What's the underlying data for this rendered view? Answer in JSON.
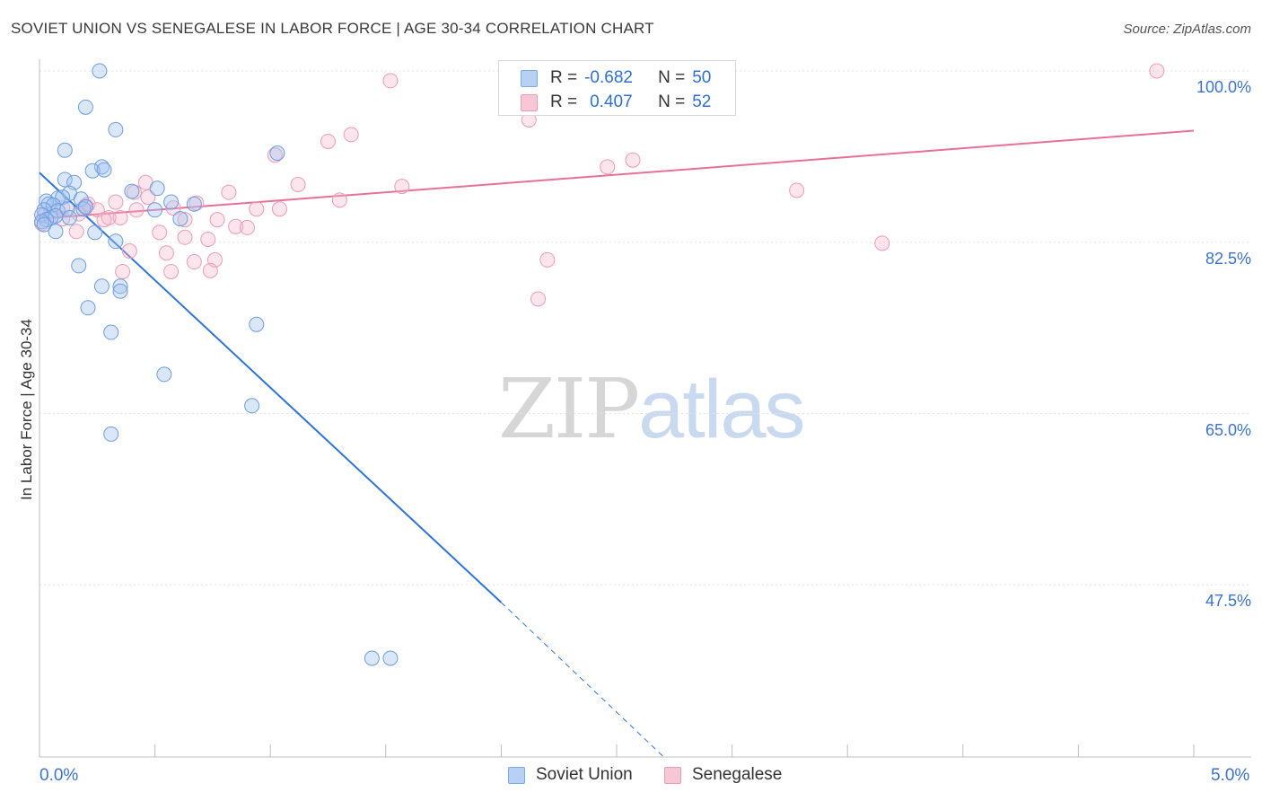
{
  "title": "SOVIET UNION VS SENEGALESE IN LABOR FORCE | AGE 30-34 CORRELATION CHART",
  "source": "Source: ZipAtlas.com",
  "watermark": {
    "zip": "ZIP",
    "atlas": "atlas"
  },
  "legend": {
    "r_label": "R =",
    "n_label": "N =",
    "rows": [
      {
        "r": "-0.682",
        "n": "50",
        "fill": "#b7d1f4",
        "stroke": "#7ea8e3"
      },
      {
        "r": "0.407",
        "n": "52",
        "fill": "#f8c7d5",
        "stroke": "#eb9bb3"
      }
    ]
  },
  "colors": {
    "soviet_fill": "rgba(160,196,240,0.40)",
    "soviet_stroke": "#6d9de0",
    "soviet_line": "#2f74d6",
    "senegalese_fill": "rgba(246,180,200,0.35)",
    "senegalese_stroke": "#ec9cb5",
    "senegalese_line": "#e6709a",
    "grid": "#e3e3e3",
    "axis": "#bfbfbf",
    "tick_label": "#3b73cc"
  },
  "chart_data": {
    "type": "scatter",
    "title": "SOVIET UNION VS SENEGALESE IN LABOR FORCE | AGE 30-34 CORRELATION CHART",
    "xlabel": "",
    "ylabel": "In Labor Force | Age 30-34",
    "xlim": [
      0.0,
      5.2
    ],
    "ylim": [
      29.5,
      101.5
    ],
    "x_tick_labels": [
      "0.0%",
      "5.0%"
    ],
    "y_ticks": [
      47.5,
      65.0,
      82.5,
      100.0
    ],
    "y_tick_labels": [
      "47.5%",
      "65.0%",
      "82.5%",
      "100.0%"
    ],
    "grid": true,
    "legend_position": "top-center",
    "series": [
      {
        "name": "Soviet Union",
        "r": -0.682,
        "n": 50,
        "points": [
          [
            0.26,
            100.0
          ],
          [
            0.2,
            96.3
          ],
          [
            0.33,
            94.0
          ],
          [
            0.11,
            91.9
          ],
          [
            0.27,
            90.2
          ],
          [
            0.23,
            89.8
          ],
          [
            0.28,
            89.9
          ],
          [
            0.11,
            88.9
          ],
          [
            0.15,
            88.6
          ],
          [
            0.13,
            87.5
          ],
          [
            0.08,
            87.0
          ],
          [
            0.1,
            87.1
          ],
          [
            0.18,
            86.9
          ],
          [
            0.03,
            86.7
          ],
          [
            0.04,
            86.4
          ],
          [
            0.06,
            86.3
          ],
          [
            0.02,
            85.8
          ],
          [
            0.08,
            85.7
          ],
          [
            0.12,
            85.9
          ],
          [
            0.19,
            85.9
          ],
          [
            0.2,
            86.1
          ],
          [
            0.01,
            85.3
          ],
          [
            0.05,
            85.0
          ],
          [
            0.07,
            85.2
          ],
          [
            0.13,
            85.0
          ],
          [
            0.03,
            84.8
          ],
          [
            0.01,
            84.6
          ],
          [
            0.02,
            84.3
          ],
          [
            0.07,
            83.6
          ],
          [
            0.24,
            83.5
          ],
          [
            0.33,
            82.6
          ],
          [
            0.4,
            87.7
          ],
          [
            0.51,
            88.0
          ],
          [
            0.57,
            86.6
          ],
          [
            0.5,
            85.8
          ],
          [
            0.61,
            84.9
          ],
          [
            0.67,
            86.4
          ],
          [
            0.17,
            80.1
          ],
          [
            0.27,
            78.0
          ],
          [
            0.35,
            78.0
          ],
          [
            0.35,
            77.5
          ],
          [
            0.21,
            75.8
          ],
          [
            0.31,
            73.3
          ],
          [
            0.54,
            69.0
          ],
          [
            0.94,
            74.1
          ],
          [
            1.03,
            91.6
          ],
          [
            0.92,
            65.8
          ],
          [
            0.31,
            62.9
          ],
          [
            1.44,
            40.0
          ],
          [
            1.52,
            40.0
          ]
        ]
      },
      {
        "name": "Senegalese",
        "r": 0.407,
        "n": 52,
        "points": [
          [
            4.84,
            100.0
          ],
          [
            1.52,
            99.0
          ],
          [
            2.12,
            95.0
          ],
          [
            1.35,
            93.5
          ],
          [
            1.25,
            92.8
          ],
          [
            1.02,
            91.4
          ],
          [
            2.46,
            90.2
          ],
          [
            2.57,
            90.9
          ],
          [
            1.57,
            88.2
          ],
          [
            1.12,
            88.4
          ],
          [
            0.46,
            88.6
          ],
          [
            0.41,
            87.6
          ],
          [
            0.82,
            87.6
          ],
          [
            3.28,
            87.8
          ],
          [
            0.47,
            87.1
          ],
          [
            0.33,
            86.6
          ],
          [
            0.68,
            86.5
          ],
          [
            0.21,
            86.4
          ],
          [
            1.3,
            86.8
          ],
          [
            0.58,
            86.0
          ],
          [
            0.42,
            85.8
          ],
          [
            0.1,
            86.0
          ],
          [
            0.25,
            85.8
          ],
          [
            0.94,
            85.9
          ],
          [
            1.04,
            85.9
          ],
          [
            0.17,
            85.4
          ],
          [
            0.02,
            85.2
          ],
          [
            0.3,
            85.0
          ],
          [
            0.28,
            84.8
          ],
          [
            0.63,
            84.8
          ],
          [
            0.77,
            84.8
          ],
          [
            0.85,
            84.1
          ],
          [
            0.01,
            84.4
          ],
          [
            0.16,
            83.6
          ],
          [
            0.52,
            83.5
          ],
          [
            0.63,
            83.0
          ],
          [
            0.73,
            82.8
          ],
          [
            3.65,
            82.4
          ],
          [
            0.39,
            81.6
          ],
          [
            0.55,
            81.4
          ],
          [
            0.67,
            80.5
          ],
          [
            0.76,
            80.7
          ],
          [
            0.74,
            79.6
          ],
          [
            0.57,
            79.5
          ],
          [
            0.36,
            79.5
          ],
          [
            2.2,
            80.7
          ],
          [
            2.16,
            76.7
          ],
          [
            0.1,
            84.9
          ],
          [
            0.05,
            85.7
          ],
          [
            0.2,
            86.2
          ],
          [
            0.35,
            85.0
          ],
          [
            0.9,
            84.0
          ]
        ]
      }
    ],
    "trend_lines": [
      {
        "series": "Soviet Union",
        "x_start": 0.0,
        "y_start": 89.6,
        "x_end_solid": 2.0,
        "y_end_solid": 45.7,
        "x_end_dashed": 2.7,
        "y_end_dashed": 30.0
      },
      {
        "series": "Senegalese",
        "x_start": 0.0,
        "y_start": 84.9,
        "x_end": 5.0,
        "y_end": 93.9
      }
    ]
  },
  "bottom_legend": [
    {
      "label": "Soviet Union",
      "fill": "#b7d1f4",
      "stroke": "#7ea8e3"
    },
    {
      "label": "Senegalese",
      "fill": "#f8c7d5",
      "stroke": "#eb9bb3"
    }
  ]
}
